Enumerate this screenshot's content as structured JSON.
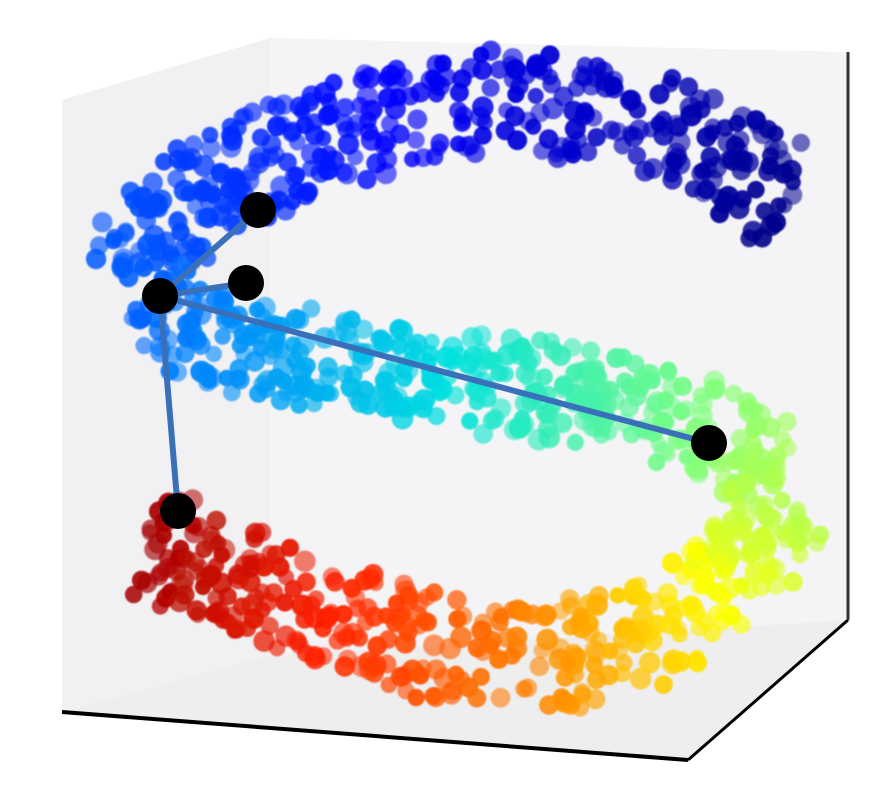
{
  "figure": {
    "kind": "3d-scatter-swiss-roll-with-neighbor-graph",
    "colormap": [
      "#00008b",
      "#0000ff",
      "#0080ff",
      "#00e0e0",
      "#7fff7f",
      "#ffff00",
      "#ff8000",
      "#ff2000",
      "#a00000"
    ],
    "edge_color": "#3a6fba",
    "node_color": "#000000",
    "pane_colors": {
      "left": "#f1f1f3",
      "back": "#f4f4f6",
      "floor": "#eeeeef"
    },
    "axes_line_color": "#000000",
    "grid": false,
    "legend": "none"
  },
  "graph": {
    "center_node": "hub",
    "nodes": [
      "hub",
      "n1",
      "n2",
      "n3",
      "n4"
    ],
    "edges": [
      [
        "hub",
        "n1"
      ],
      [
        "hub",
        "n2"
      ],
      [
        "hub",
        "n3"
      ],
      [
        "hub",
        "n4"
      ]
    ]
  }
}
